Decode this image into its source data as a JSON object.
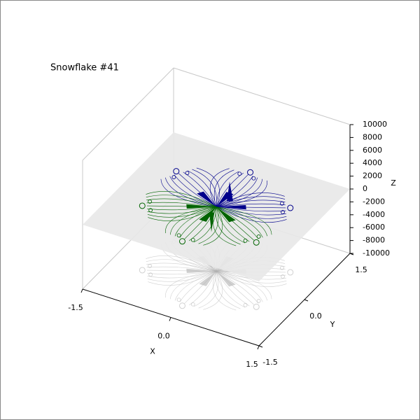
{
  "chart_data": {
    "type": "snowflake3d",
    "title": "Snowflake #41",
    "x_label": "X",
    "y_label": "Y",
    "z_label": "Z",
    "xlim": [
      -1.5,
      1.5
    ],
    "ylim": [
      -1.5,
      1.5
    ],
    "zlim": [
      -10000,
      10000
    ],
    "xticks": [
      -1.5,
      {
        "value": 0,
        "label": "0.0"
      },
      1.5
    ],
    "yticks": [
      -1.5,
      {
        "value": 0,
        "label": "0.0"
      },
      1.5
    ],
    "zticks": [
      -10000,
      -8000,
      -6000,
      -4000,
      -2000,
      0,
      2000,
      4000,
      6000,
      8000,
      10000
    ],
    "colors": [
      "#00008b",
      "#006400"
    ],
    "plane_color": "#e8e8e8",
    "shadow_color": "#b0b0b0"
  }
}
